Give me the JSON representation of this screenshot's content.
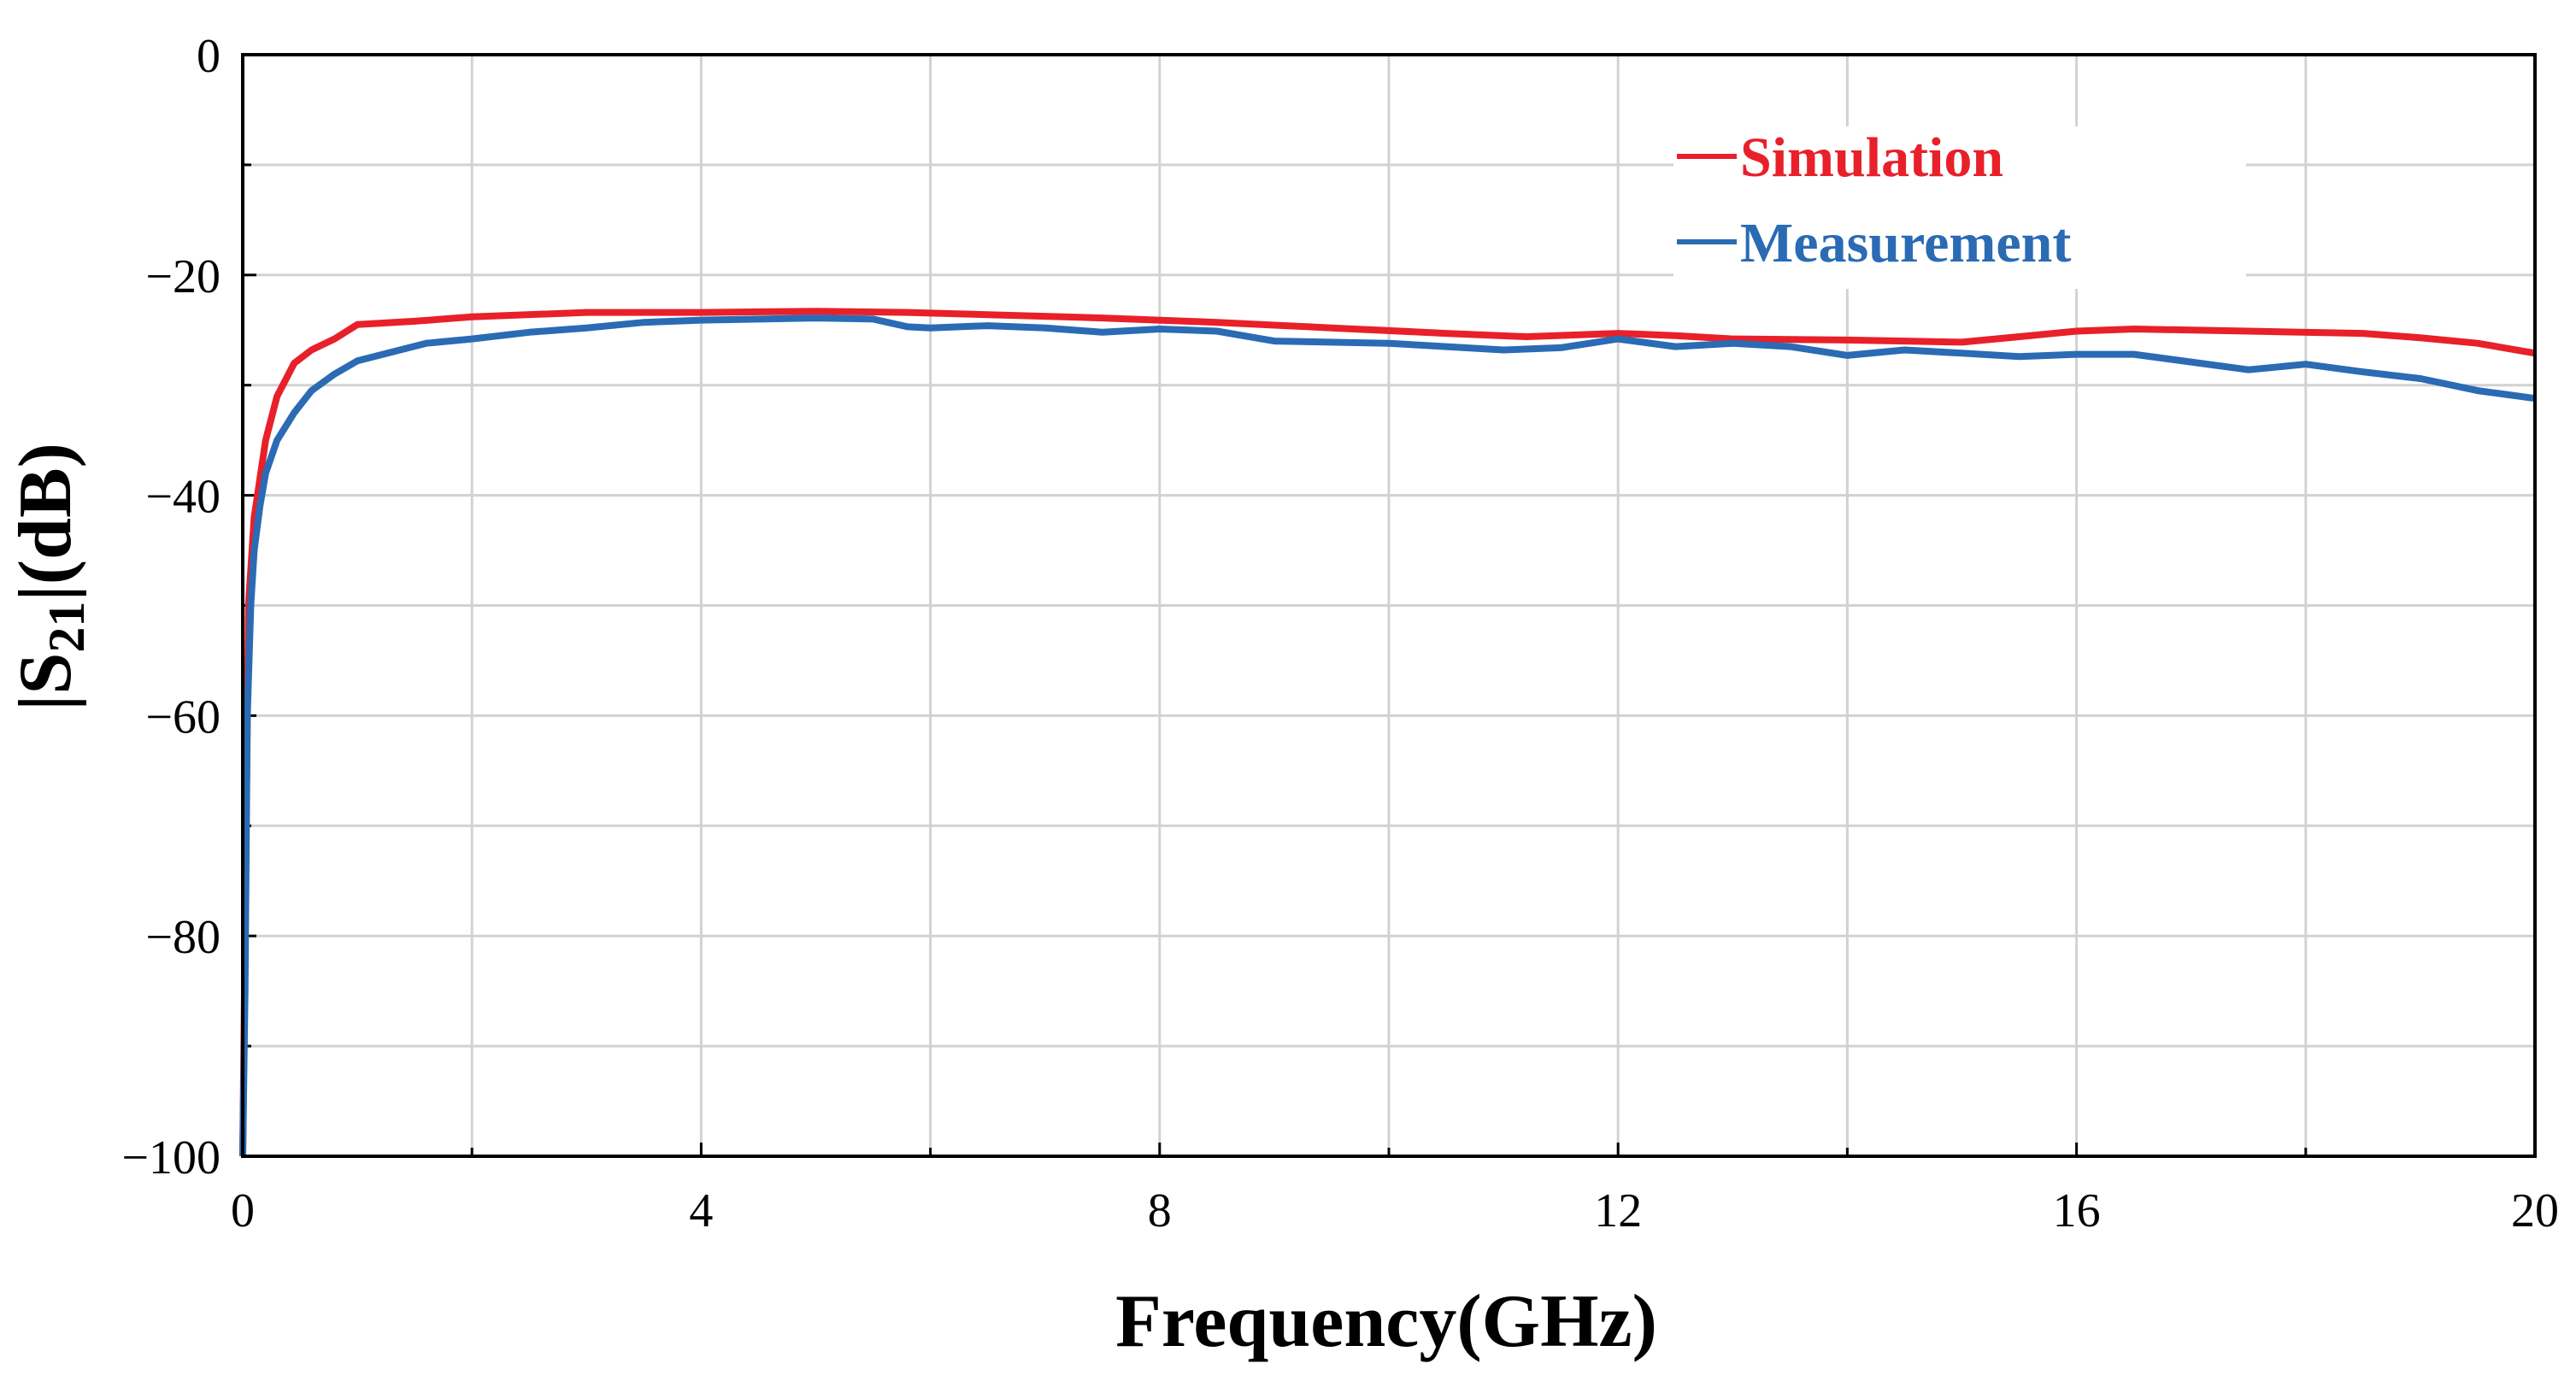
{
  "chart_data": {
    "type": "line",
    "xlabel": "Frequency(GHz)",
    "ylabel": {
      "prefix": "|S",
      "subscript": "21",
      "suffix": "|(dB)"
    },
    "xlim": [
      0,
      20
    ],
    "ylim": [
      -100,
      0
    ],
    "xticks": [
      0,
      4,
      8,
      12,
      16,
      20
    ],
    "xtick_labels": [
      "0",
      "4",
      "8",
      "12",
      "16",
      "20"
    ],
    "yticks": [
      0,
      -20,
      -40,
      -60,
      -80,
      -100
    ],
    "ytick_labels": [
      "0",
      "−20",
      "−40",
      "−60",
      "−80",
      "−100"
    ],
    "grid": true,
    "legend_position": "top-right",
    "series": [
      {
        "name": "Simulation",
        "color": "#e8202a",
        "x": [
          0,
          0.02,
          0.05,
          0.1,
          0.2,
          0.3,
          0.45,
          0.6,
          0.8,
          1.0,
          1.5,
          2.0,
          3.0,
          4.0,
          5.0,
          5.8,
          6.5,
          7.5,
          8.5,
          9.5,
          10.5,
          11.2,
          12.0,
          12.5,
          13.0,
          14.0,
          15.0,
          15.5,
          16.0,
          16.5,
          17.5,
          18.5,
          19.0,
          19.5,
          20.0
        ],
        "values": [
          -100,
          -80,
          -50,
          -42,
          -35,
          -31,
          -28,
          -26.8,
          -25.8,
          -24.5,
          -24.2,
          -23.8,
          -23.4,
          -23.4,
          -23.3,
          -23.4,
          -23.6,
          -23.9,
          -24.3,
          -24.8,
          -25.3,
          -25.6,
          -25.3,
          -25.5,
          -25.8,
          -25.9,
          -26.1,
          -25.6,
          -25.1,
          -24.9,
          -25.1,
          -25.3,
          -25.7,
          -26.2,
          -27.1
        ]
      },
      {
        "name": "Measurement",
        "color": "#2a6bb4",
        "x": [
          0,
          0.02,
          0.04,
          0.07,
          0.1,
          0.15,
          0.2,
          0.3,
          0.45,
          0.6,
          0.8,
          1.0,
          1.3,
          1.6,
          2.0,
          2.5,
          3.0,
          3.5,
          4.0,
          4.5,
          5.0,
          5.5,
          5.8,
          6.0,
          6.5,
          7.0,
          7.5,
          8.0,
          8.5,
          9.0,
          10.0,
          11.0,
          11.5,
          12.0,
          12.5,
          13.0,
          13.5,
          14.0,
          14.5,
          15.0,
          15.5,
          16.0,
          16.5,
          17.0,
          17.5,
          18.0,
          18.5,
          19.0,
          19.5,
          20.0
        ],
        "values": [
          -100,
          -85,
          -60,
          -50,
          -45,
          -41,
          -38,
          -35,
          -32.5,
          -30.5,
          -29,
          -27.8,
          -27,
          -26.2,
          -25.8,
          -25.2,
          -24.8,
          -24.3,
          -24.1,
          -24.0,
          -23.9,
          -24.0,
          -24.7,
          -24.8,
          -24.6,
          -24.8,
          -25.2,
          -24.9,
          -25.1,
          -26.0,
          -26.2,
          -26.8,
          -26.6,
          -25.8,
          -26.5,
          -26.2,
          -26.5,
          -27.3,
          -26.8,
          -27.1,
          -27.4,
          -27.2,
          -27.2,
          -27.9,
          -28.6,
          -28.1,
          -28.8,
          -29.4,
          -30.5,
          -31.2
        ]
      }
    ]
  }
}
